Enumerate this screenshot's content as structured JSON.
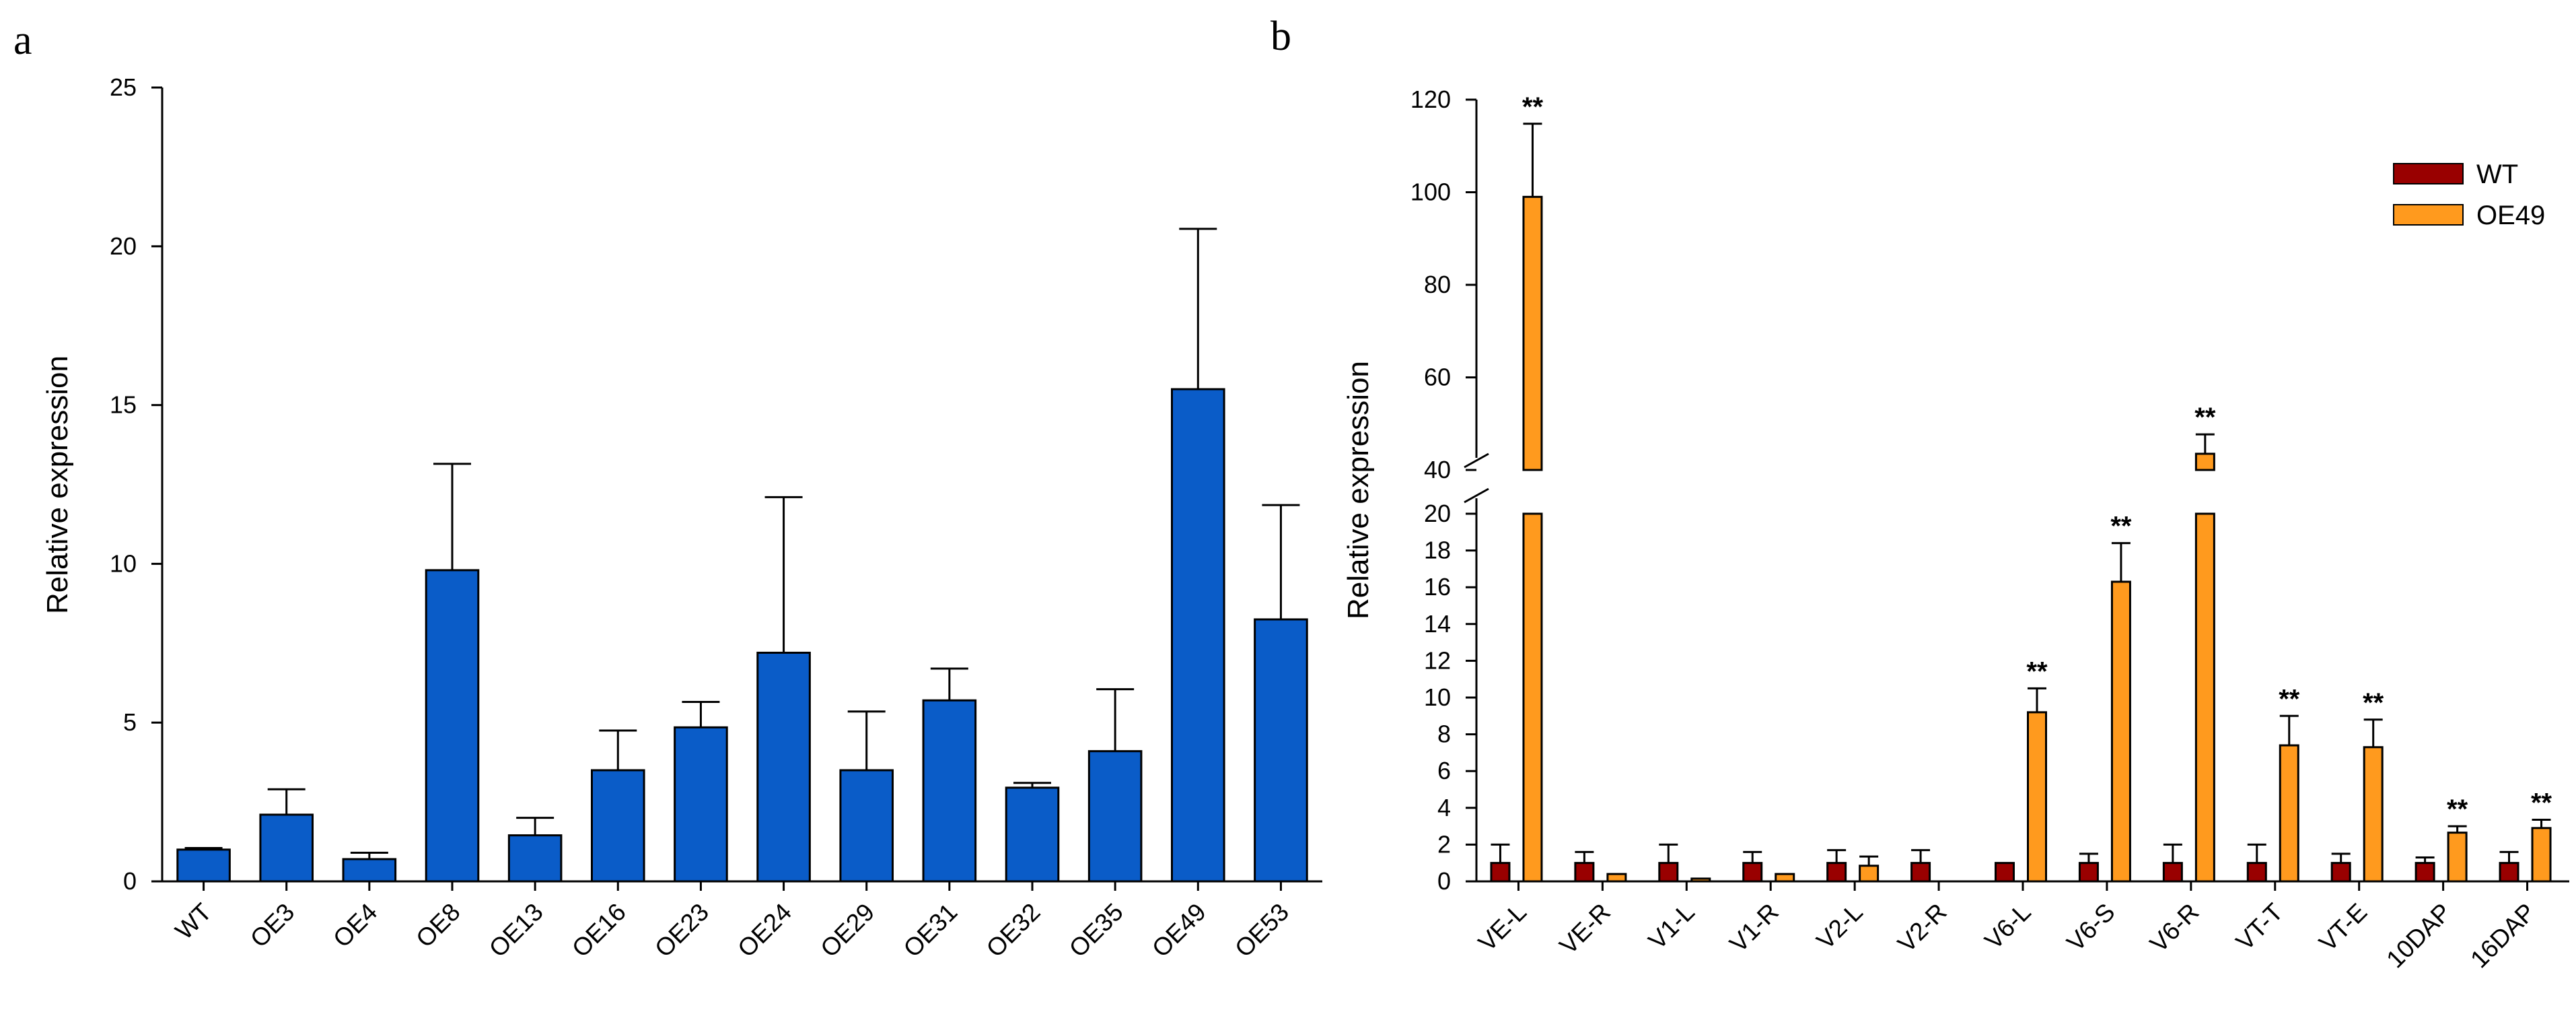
{
  "figure": {
    "panel_a_letter": "a",
    "panel_b_letter": "b"
  },
  "chart_data": [
    {
      "panel": "a",
      "type": "bar",
      "title": "",
      "xlabel": "",
      "ylabel": "Relative expression",
      "ylim": [
        0,
        25
      ],
      "yticks": [
        0,
        5,
        10,
        15,
        20,
        25
      ],
      "bar_color": "#0A5CC8",
      "categories": [
        "WT",
        "OE3",
        "OE4",
        "OE8",
        "OE13",
        "OE16",
        "OE23",
        "OE24",
        "OE29",
        "OE31",
        "OE32",
        "OE35",
        "OE49",
        "OE53"
      ],
      "values": [
        1.0,
        2.1,
        0.7,
        9.8,
        1.45,
        3.5,
        4.85,
        7.2,
        3.5,
        5.7,
        2.95,
        4.1,
        15.5,
        8.25
      ],
      "errors": [
        0.05,
        0.8,
        0.2,
        3.35,
        0.55,
        1.25,
        0.8,
        4.9,
        1.85,
        1.0,
        0.15,
        1.95,
        5.05,
        3.6
      ]
    },
    {
      "panel": "b",
      "type": "bar",
      "title": "",
      "xlabel": "",
      "ylabel": "Relative expression",
      "axis_break": {
        "lower_ylim": [
          0,
          20
        ],
        "upper_ylim": [
          40,
          120
        ]
      },
      "yticks_lower": [
        0,
        2,
        4,
        6,
        8,
        10,
        12,
        14,
        16,
        18,
        20
      ],
      "yticks_upper": [
        40,
        60,
        80,
        100,
        120
      ],
      "legend_position": "top-right",
      "categories": [
        "VE-L",
        "VE-R",
        "V1-L",
        "V1-R",
        "V2-L",
        "V2-R",
        "V6-L",
        "V6-S",
        "V6-R",
        "VT-T",
        "VT-E",
        "10DAP",
        "16DAP"
      ],
      "series": [
        {
          "name": "WT",
          "color": "#990000",
          "values": [
            1.0,
            1.0,
            1.0,
            1.0,
            1.0,
            1.0,
            1.0,
            1.0,
            1.0,
            1.0,
            1.0,
            1.0,
            1.0
          ],
          "errors": [
            1.0,
            0.6,
            1.0,
            0.6,
            0.7,
            0.7,
            0.0,
            0.5,
            1.0,
            1.0,
            0.5,
            0.3,
            0.6
          ]
        },
        {
          "name": "OE49",
          "color": "#FF9A1E",
          "values": [
            99.0,
            0.4,
            0.15,
            0.4,
            0.85,
            0.0,
            9.2,
            16.3,
            43.5,
            7.4,
            7.3,
            2.65,
            2.9
          ],
          "errors": [
            15.8,
            0.0,
            0.0,
            0.0,
            0.5,
            0.0,
            1.3,
            2.1,
            4.2,
            1.6,
            1.5,
            0.35,
            0.45
          ]
        }
      ],
      "significance": [
        "**",
        "",
        "",
        "",
        "",
        "",
        "**",
        "**",
        "**",
        "**",
        "**",
        "**",
        "**"
      ]
    }
  ]
}
